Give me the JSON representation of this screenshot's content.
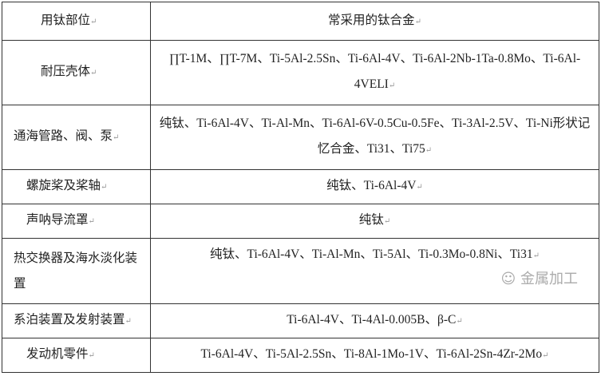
{
  "header": {
    "part": "用钛部位",
    "alloys": "常采用的钛合金"
  },
  "rows": [
    {
      "part": "耐压壳体",
      "alloys": "∏T-1M、∏T-7M、Ti-5Al-2.5Sn、Ti-6Al-4V、Ti-6Al-2Nb-1Ta-0.8Mo、Ti-6Al-4VELI"
    },
    {
      "part": "通海管路、阀、泵",
      "alloys": "纯钛、Ti-6Al-4V、Ti-Al-Mn、Ti-6Al-6V-0.5Cu-0.5Fe、Ti-3Al-2.5V、Ti-Ni形状记忆合金、Ti31、Ti75"
    },
    {
      "part": "螺旋桨及桨轴",
      "alloys": "纯钛、Ti-6Al-4V"
    },
    {
      "part": "声呐导流罩",
      "alloys": "纯钛"
    },
    {
      "part": "热交换器及海水淡化装置",
      "alloys": "纯钛、Ti-6Al-4V、Ti-Al-Mn、Ti-5Al、Ti-0.3Mo-0.8Ni、Ti31"
    },
    {
      "part": "系泊装置及发射装置",
      "alloys": "Ti-6Al-4V、Ti-4Al-0.005B、β-C"
    },
    {
      "part": "发动机零件",
      "alloys": "Ti-6Al-4V、Ti-5Al-2.5Sn、Ti-8Al-1Mo-1V、Ti-6Al-2Sn-4Zr-2Mo"
    }
  ],
  "watermark": "金属加工"
}
